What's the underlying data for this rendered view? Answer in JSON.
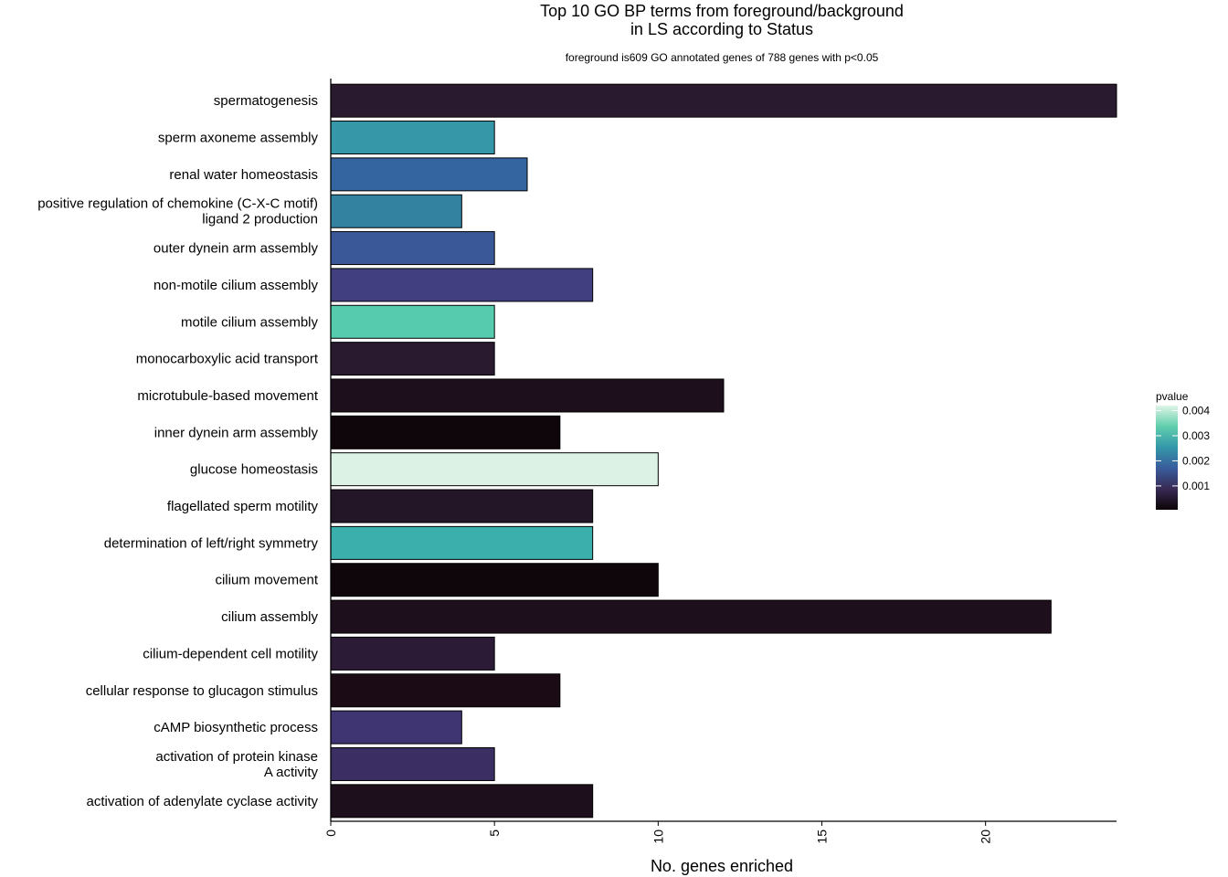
{
  "chart_data": {
    "type": "bar",
    "orientation": "horizontal",
    "title": [
      "Top 10 GO BP terms from foreground/background",
      "in LS according to Status"
    ],
    "subtitle": "foreground is609 GO annotated genes of 788 genes with p<0.05",
    "xlabel": "No. genes enriched",
    "ylabel": "",
    "xlim": [
      0,
      24
    ],
    "xticks": [
      0,
      5,
      10,
      15,
      20
    ],
    "categories": [
      [
        "spermatogenesis"
      ],
      [
        "sperm axoneme assembly"
      ],
      [
        "renal water homeostasis"
      ],
      [
        "positive regulation of chemokine (C-X-C motif)",
        "ligand 2 production"
      ],
      [
        "outer dynein arm assembly"
      ],
      [
        "non-motile cilium assembly"
      ],
      [
        "motile cilium assembly"
      ],
      [
        "monocarboxylic acid transport"
      ],
      [
        "microtubule-based movement"
      ],
      [
        "inner dynein arm assembly"
      ],
      [
        "glucose homeostasis"
      ],
      [
        "flagellated sperm motility"
      ],
      [
        "determination of left/right symmetry"
      ],
      [
        "cilium movement"
      ],
      [
        "cilium assembly"
      ],
      [
        "cilium-dependent cell motility"
      ],
      [
        "cellular response to glucagon stimulus"
      ],
      [
        "cAMP biosynthetic process"
      ],
      [
        "activation of protein kinase",
        "A activity"
      ],
      [
        "activation of adenylate cyclase activity"
      ]
    ],
    "values": [
      24,
      5,
      6,
      4,
      5,
      8,
      5,
      5,
      12,
      7,
      10,
      8,
      8,
      10,
      22,
      5,
      7,
      4,
      5,
      8
    ],
    "pvalues": [
      0.0004,
      0.0021,
      0.0016,
      0.002,
      0.0012,
      0.0009,
      0.003,
      0.0004,
      0.0001,
      5e-05,
      0.0042,
      0.0003,
      0.0023,
      5e-05,
      0.0001,
      0.0005,
      0.0001,
      0.0008,
      0.0007,
      0.0002
    ],
    "colors": [
      "#2a1a30",
      "#3597a8",
      "#3465a0",
      "#3282a0",
      "#3a5898",
      "#413f80",
      "#56cbae",
      "#2a1a30",
      "#1e0f1c",
      "#0f060b",
      "#dcf2e4",
      "#231626",
      "#3bafac",
      "#0f060b",
      "#1e0f1c",
      "#2c1b36",
      "#1a0b15",
      "#3e3572",
      "#3a2e62",
      "#1e0f1c"
    ],
    "legend": {
      "title": "pvalue",
      "position": "right",
      "ticks": [
        "0.004",
        "0.003",
        "0.002",
        "0.001"
      ],
      "tick_values": [
        0.004,
        0.003,
        0.002,
        0.001
      ],
      "range": [
        5e-05,
        0.0042
      ],
      "gradient": [
        "#0b0405",
        "#382a54",
        "#395d9c",
        "#3497a9",
        "#60ceac",
        "#def5e5"
      ]
    },
    "grid": false
  }
}
